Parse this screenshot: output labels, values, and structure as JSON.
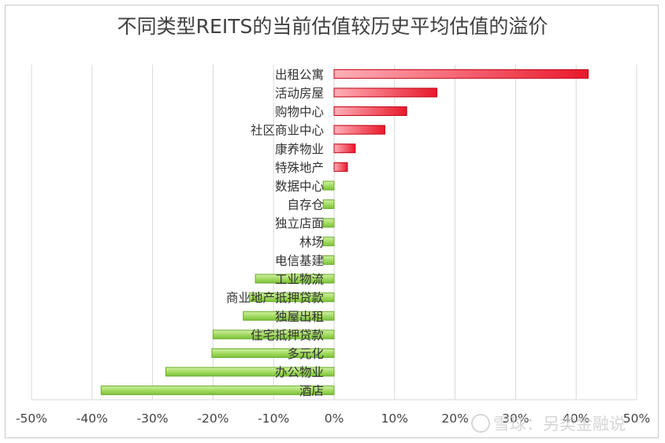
{
  "chart_data": {
    "type": "bar",
    "orientation": "horizontal",
    "title": "不同类型REITS的当前估值较历史平均估值的溢价",
    "categories": [
      "出租公寓",
      "活动房屋",
      "购物中心",
      "社区商业中心",
      "康养物业",
      "特殊地产",
      "数据中心",
      "自存仓",
      "独立店面",
      "林场",
      "电信基建",
      "工业物流",
      "商业地产抵押贷款",
      "独屋出租",
      "住宅抵押贷款",
      "多元化",
      "办公物业",
      "酒店"
    ],
    "values": [
      0.42,
      0.17,
      0.12,
      0.084,
      0.035,
      0.022,
      -0.018,
      -0.018,
      -0.018,
      -0.018,
      -0.018,
      -0.13,
      -0.14,
      -0.15,
      -0.2,
      -0.202,
      -0.278,
      -0.385
    ],
    "xlim": [
      -0.5,
      0.5
    ],
    "xticks": [
      -0.5,
      -0.4,
      -0.3,
      -0.2,
      -0.1,
      0,
      0.1,
      0.2,
      0.3,
      0.4,
      0.5
    ],
    "xtick_labels": [
      "-50%",
      "-40%",
      "-30%",
      "-20%",
      "-10%",
      "0%",
      "10%",
      "20%",
      "30%",
      "40%",
      "50%"
    ],
    "grid": "vertical",
    "colors": {
      "positive": "#e8192c",
      "negative": "#8fd14f"
    }
  },
  "watermark": "雪球：另类金融说"
}
